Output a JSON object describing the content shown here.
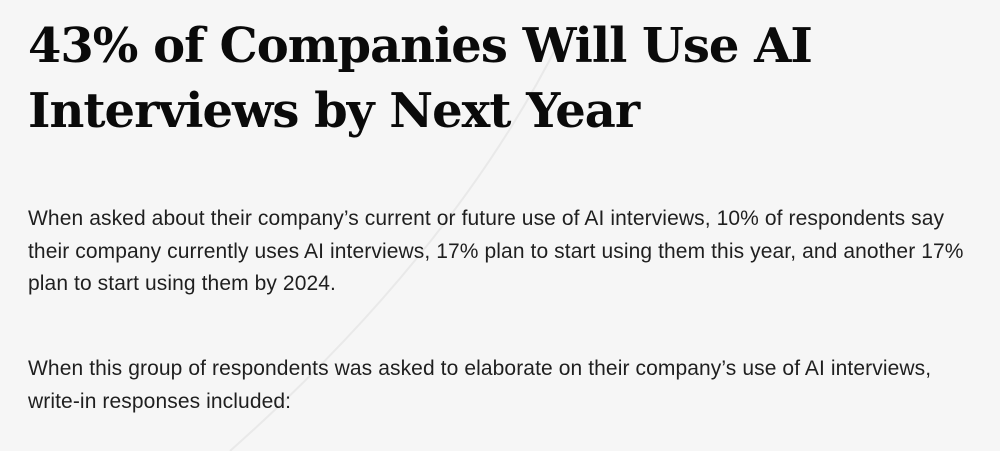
{
  "article": {
    "headline": "43% of Companies Will Use AI Interviews by Next Year",
    "paragraphs": [
      "When asked about their company’s current or future use of AI interviews, 10% of respondents say their company currently uses AI interviews, 17% plan to start using them this year, and another 17% plan to start using them by 2024.",
      "When this group of respondents was asked to elaborate on their company’s use of AI interviews, write-in responses included:"
    ]
  },
  "colors": {
    "background": "#f6f6f6",
    "headline": "#0a0a0a",
    "body_text": "#1f1f1f"
  }
}
